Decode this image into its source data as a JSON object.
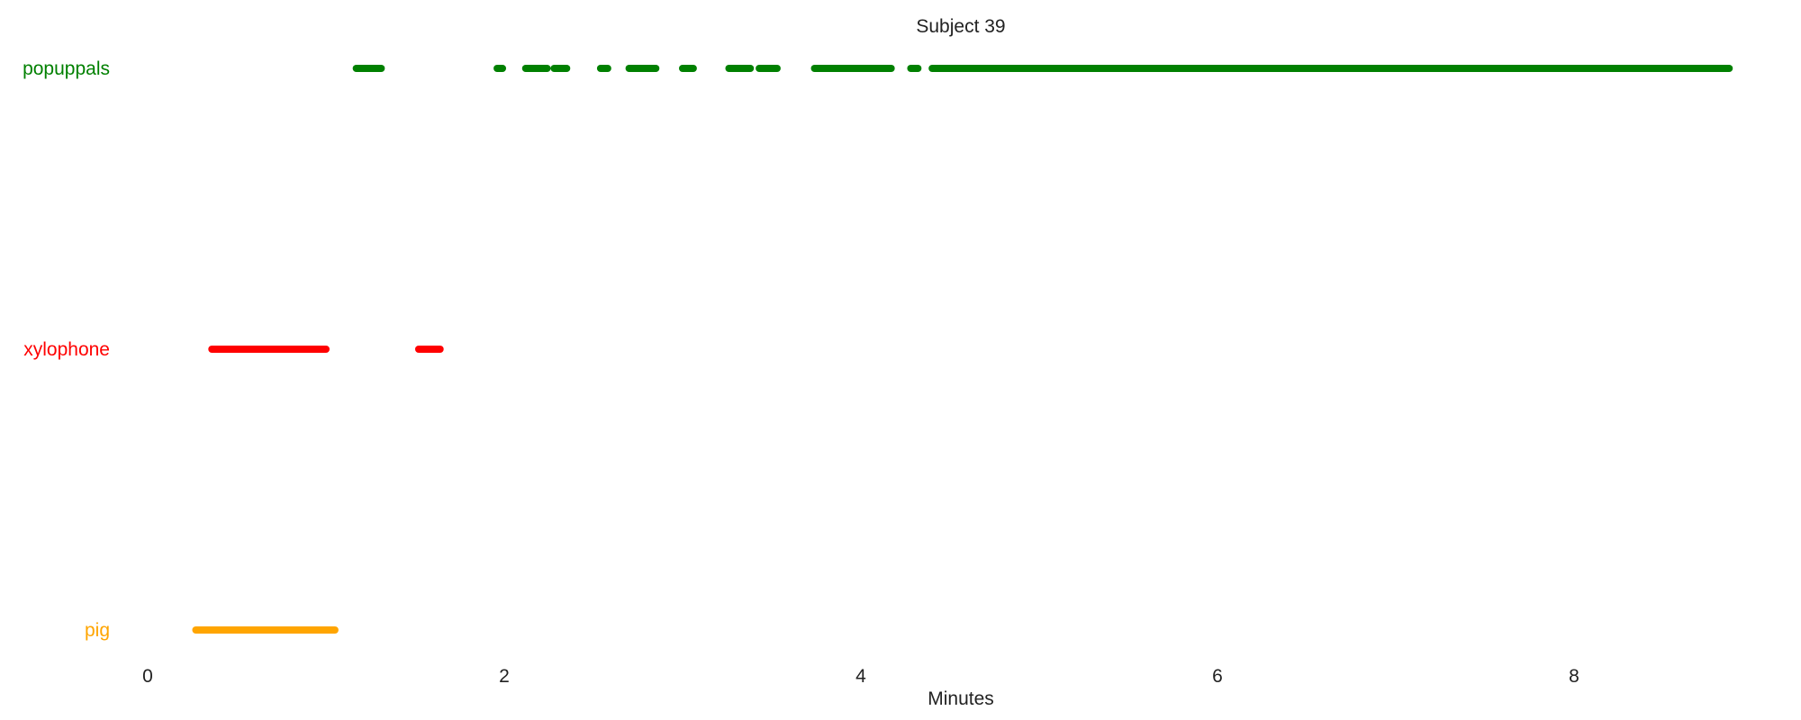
{
  "chart_data": {
    "type": "timeline",
    "title": "Subject 39",
    "xlabel": "Minutes",
    "xlim": [
      0,
      9.3
    ],
    "x_ticks": [
      0,
      2,
      4,
      6,
      8
    ],
    "x_tick_labels": [
      "0",
      "2",
      "4",
      "6",
      "8"
    ],
    "grid": false,
    "series": [
      {
        "name": "popuppals",
        "color": "#008000",
        "segments": [
          [
            1.17,
            1.31
          ],
          [
            1.96,
            1.99
          ],
          [
            2.12,
            2.24
          ],
          [
            2.28,
            2.35
          ],
          [
            2.54,
            2.58
          ],
          [
            2.7,
            2.85
          ],
          [
            3.0,
            3.06
          ],
          [
            3.26,
            3.38
          ],
          [
            3.43,
            3.53
          ],
          [
            3.74,
            4.17
          ],
          [
            4.28,
            4.32
          ],
          [
            4.4,
            8.87
          ]
        ]
      },
      {
        "name": "xylophone",
        "color": "#ff0000",
        "segments": [
          [
            0.36,
            1.0
          ],
          [
            1.52,
            1.64
          ]
        ]
      },
      {
        "name": "pig",
        "color": "#ffa500",
        "segments": [
          [
            0.27,
            1.05
          ]
        ]
      }
    ]
  }
}
